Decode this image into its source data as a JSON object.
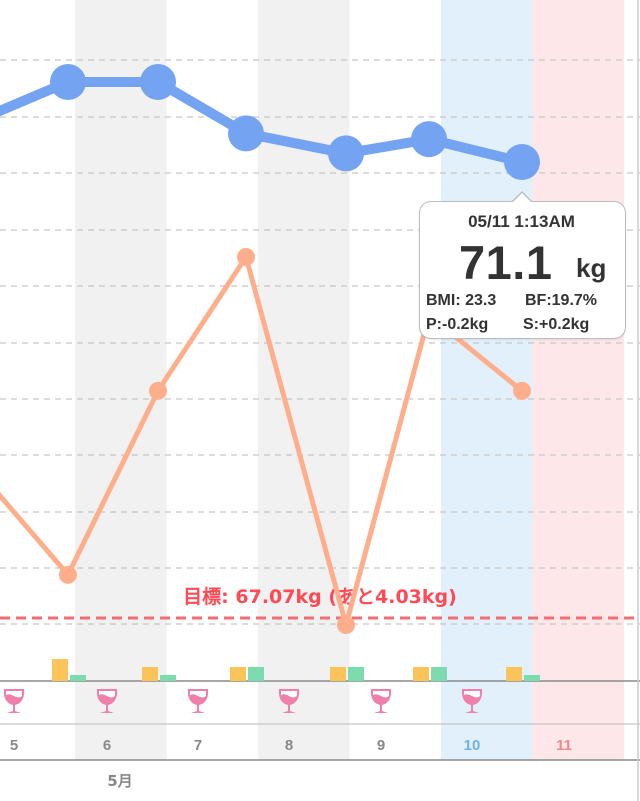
{
  "colors": {
    "weight_line": "#74a3f2",
    "bodyfat_line": "#ffae8c",
    "goal_line": "#f26d73",
    "goal_text": "#ff4a55",
    "bar_orange": "#fbc45a",
    "bar_green": "#7ddbb0",
    "wine_icon": "#ef7fab",
    "today_highlight": "#e2f0fb",
    "selected_highlight": "#fde7e9",
    "alt_column": "#f1f1f1",
    "grid": "#c7c7c7"
  },
  "x_axis": {
    "days": [
      "5",
      "6",
      "7",
      "8",
      "9",
      "10",
      "11"
    ],
    "day_colors": [
      "#888888",
      "#888888",
      "#888888",
      "#888888",
      "#888888",
      "#6db3ea",
      "#f3868e"
    ],
    "month_label": "5月"
  },
  "goal": {
    "label": "目標: 67.07kg (あと4.03kg)"
  },
  "wine_icon_days": [
    "5",
    "6",
    "7",
    "8",
    "9",
    "10"
  ],
  "callout": {
    "datetime": "05/11 1:13AM",
    "weight": "71.1",
    "unit": "kg",
    "bmi": "BMI: 23.3",
    "bf": "BF:19.7%",
    "p": "P:-0.2kg",
    "s": "S:+0.2kg"
  },
  "chart_data": {
    "type": "line",
    "categories": [
      "5",
      "6",
      "7",
      "8",
      "9",
      "10",
      "11"
    ],
    "series": [
      {
        "values": [
          71.7,
          72.5,
          72.5,
          71.6,
          71.25,
          71.5,
          71.1
        ]
      },
      {
        "values": [
          19.0,
          17.5,
          19.7,
          21.3,
          16.9,
          20.6,
          19.7
        ]
      }
    ],
    "goal": 67.07,
    "bars": [
      {
        "orange": 0,
        "green": 0
      },
      {
        "orange": 22,
        "green": 6
      },
      {
        "orange": 14,
        "green": 6
      },
      {
        "orange": 14,
        "green": 14
      },
      {
        "orange": 14,
        "green": 14
      },
      {
        "orange": 14,
        "green": 14
      },
      {
        "orange": 14,
        "green": 6
      }
    ]
  }
}
